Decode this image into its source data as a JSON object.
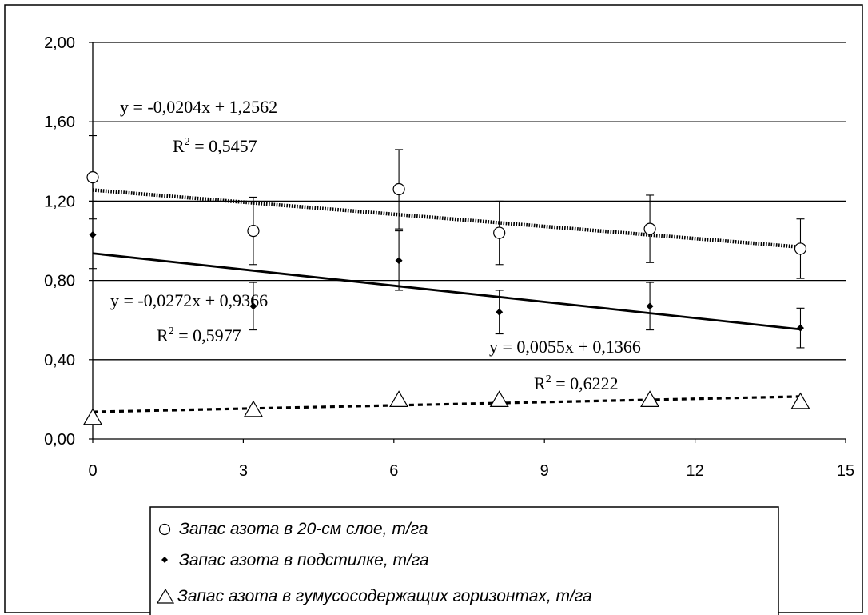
{
  "chart_data": {
    "type": "scatter",
    "xlim": [
      0,
      15
    ],
    "ylim": [
      0,
      2
    ],
    "x_ticks": [
      "0",
      "3",
      "6",
      "9",
      "12",
      "15"
    ],
    "y_ticks": [
      "0,00",
      "0,40",
      "0,80",
      "1,20",
      "1,60",
      "2,00"
    ],
    "grid": "horizontal",
    "legend_position": "bottom",
    "series": [
      {
        "name": "Запас азота в 20-см слое, т/га",
        "marker": "open-circle",
        "points": [
          {
            "x": 0,
            "y": 1.32,
            "err": 0.21
          },
          {
            "x": 3.2,
            "y": 1.05,
            "err": 0.17
          },
          {
            "x": 6.1,
            "y": 1.26,
            "err": 0.2
          },
          {
            "x": 8.1,
            "y": 1.04,
            "err": 0.16
          },
          {
            "x": 11.1,
            "y": 1.06,
            "err": 0.17
          },
          {
            "x": 14.1,
            "y": 0.96,
            "err": 0.15
          }
        ],
        "trend": {
          "slope": -0.0204,
          "intercept": 1.2562,
          "style": "dotted-thick"
        },
        "equation": "y = -0,0204x + 1,2562",
        "r2_label": "R",
        "r2_value": " = 0,5457"
      },
      {
        "name": "Запас азота в подстилке, т/га",
        "marker": "filled-diamond",
        "points": [
          {
            "x": 0,
            "y": 1.03,
            "err": 0.17
          },
          {
            "x": 3.2,
            "y": 0.67,
            "err": 0.12
          },
          {
            "x": 6.1,
            "y": 0.9,
            "err": 0.15
          },
          {
            "x": 8.1,
            "y": 0.64,
            "err": 0.11
          },
          {
            "x": 11.1,
            "y": 0.67,
            "err": 0.12
          },
          {
            "x": 14.1,
            "y": 0.56,
            "err": 0.1
          }
        ],
        "trend": {
          "slope": -0.0272,
          "intercept": 0.9366,
          "style": "solid"
        },
        "equation": "y = -0,0272x + 0,9366",
        "r2_label": "R",
        "r2_value": " = 0,5977"
      },
      {
        "name": "Запас азота в гумусосодержащих горизонтах, т/га",
        "marker": "open-triangle",
        "points": [
          {
            "x": 0,
            "y": 0.11
          },
          {
            "x": 3.2,
            "y": 0.15
          },
          {
            "x": 6.1,
            "y": 0.2
          },
          {
            "x": 8.1,
            "y": 0.2
          },
          {
            "x": 11.1,
            "y": 0.2
          },
          {
            "x": 14.1,
            "y": 0.19
          }
        ],
        "trend": {
          "slope": 0.0055,
          "intercept": 0.1366,
          "style": "dashed"
        },
        "equation": "y = 0,0055x + 0,1366",
        "r2_label": "R",
        "r2_value": " = 0,6222"
      }
    ]
  }
}
